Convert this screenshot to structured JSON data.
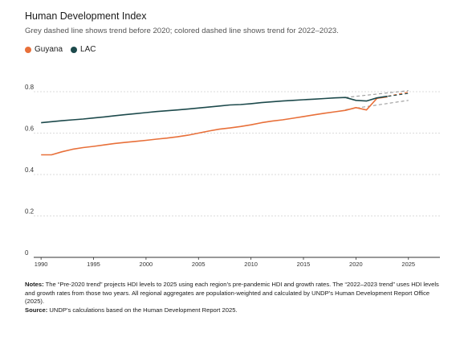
{
  "header": {
    "title": "Human Development Index",
    "subtitle": "Grey dashed line shows trend before 2020; colored dashed line shows trend for 2022–2023."
  },
  "footer": {
    "notes_label": "Notes:",
    "notes_text": " The “Pre-2020 trend” projects HDI levels to 2025 using each region’s pre-pandemic HDI and growth rates. The “2022–2023 trend” uses HDI levels and growth rates from those two years. All regional aggregates are population-weighted and calculated by UNDP’s Human Development Report Office (2025).",
    "source_label": "Source:",
    "source_text": " UNDP’s calculations based on the Human Development Report 2025."
  },
  "chart_data": {
    "type": "line",
    "title": "Human Development Index",
    "xlabel": "",
    "ylabel": "",
    "xlim": [
      1989.3,
      2028
    ],
    "ylim": [
      0,
      0.8
    ],
    "x_ticks": [
      1990,
      1995,
      2000,
      2005,
      2010,
      2015,
      2020,
      2025
    ],
    "y_ticks": [
      0,
      0.2,
      0.4,
      0.6,
      0.8
    ],
    "y_tick_labels": [
      "0",
      "0.2",
      "0.4",
      "0.6",
      "0.8"
    ],
    "grid": "horizontal dashed",
    "legend": "top-left",
    "series": [
      {
        "name": "Guyana",
        "color": "#e8703a",
        "x": [
          1990,
          1991,
          1992,
          1993,
          1994,
          1995,
          1996,
          1997,
          1998,
          1999,
          2000,
          2001,
          2002,
          2003,
          2004,
          2005,
          2006,
          2007,
          2008,
          2009,
          2010,
          2011,
          2012,
          2013,
          2014,
          2015,
          2016,
          2017,
          2018,
          2019,
          2020,
          2021,
          2022,
          2023
        ],
        "values": [
          0.495,
          0.495,
          0.51,
          0.522,
          0.53,
          0.536,
          0.543,
          0.55,
          0.555,
          0.56,
          0.565,
          0.571,
          0.576,
          0.582,
          0.59,
          0.6,
          0.61,
          0.619,
          0.625,
          0.632,
          0.64,
          0.65,
          0.658,
          0.664,
          0.672,
          0.68,
          0.688,
          0.696,
          0.703,
          0.71,
          0.723,
          0.712,
          0.768,
          0.775
        ]
      },
      {
        "name": "LAC",
        "color": "#1d4a4c",
        "x": [
          1990,
          1991,
          1992,
          1993,
          1994,
          1995,
          1996,
          1997,
          1998,
          1999,
          2000,
          2001,
          2002,
          2003,
          2004,
          2005,
          2006,
          2007,
          2008,
          2009,
          2010,
          2011,
          2012,
          2013,
          2014,
          2015,
          2016,
          2017,
          2018,
          2019,
          2020,
          2021,
          2022,
          2023
        ],
        "values": [
          0.65,
          0.655,
          0.66,
          0.664,
          0.668,
          0.673,
          0.678,
          0.684,
          0.689,
          0.694,
          0.699,
          0.704,
          0.708,
          0.712,
          0.716,
          0.721,
          0.726,
          0.731,
          0.736,
          0.738,
          0.742,
          0.747,
          0.751,
          0.755,
          0.758,
          0.761,
          0.764,
          0.767,
          0.77,
          0.772,
          0.758,
          0.755,
          0.77,
          0.778
        ]
      }
    ],
    "trend_lines": [
      {
        "series": "Guyana",
        "kind": "pre-2020",
        "color": "#9a9a9a",
        "x": [
          2019,
          2025
        ],
        "values": [
          0.713,
          0.758
        ]
      },
      {
        "series": "Guyana",
        "kind": "2022-2023",
        "color": "#e8703a",
        "x": [
          2022,
          2025
        ],
        "values": [
          0.768,
          0.798
        ]
      },
      {
        "series": "LAC",
        "kind": "pre-2020",
        "color": "#9a9a9a",
        "x": [
          2019,
          2025
        ],
        "values": [
          0.772,
          0.805
        ]
      },
      {
        "series": "LAC",
        "kind": "2022-2023",
        "color": "#1d4a4c",
        "x": [
          2022,
          2025
        ],
        "values": [
          0.77,
          0.792
        ]
      }
    ]
  }
}
